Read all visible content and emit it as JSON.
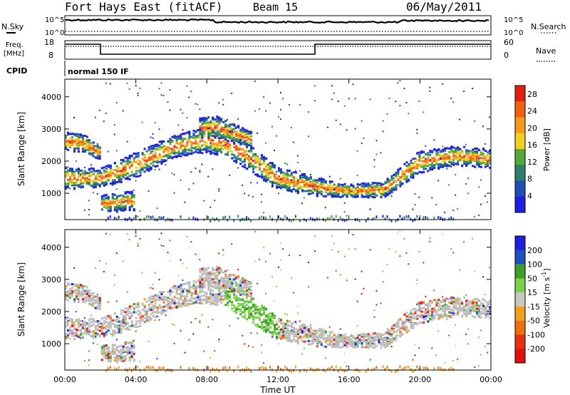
{
  "header": {
    "title": "Fort Hays East (fitACF)",
    "beam": "Beam 15",
    "date": "06/May/2011"
  },
  "status_panels": {
    "nsky_label": "N.Sky",
    "nsearch_label": "N.Search",
    "noise_ticks_left": [
      "10^5",
      "10^0"
    ],
    "noise_ticks_right": [
      "10^5",
      "10^0"
    ],
    "freq_label": "Freq.",
    "freq_unit": "[MHz]",
    "freq_ticks": [
      "18",
      "8"
    ],
    "nave_label": "Nave",
    "nave_ticks": [
      "60",
      "0"
    ],
    "cpid_label": "CPID",
    "cpid_value": "normal 150 IF"
  },
  "colors": {
    "power": [
      "#1f1fe0",
      "#1f4fb0",
      "#2e7d6e",
      "#55a83a",
      "#f0d020",
      "#f59a1a",
      "#f06010",
      "#e02010"
    ],
    "velocity": [
      "#1f1fe0",
      "#2050c0",
      "#3aa02a",
      "#79d24a",
      "#c8c8c0",
      "#f2a020",
      "#f07010",
      "#e83010",
      "#e01010"
    ],
    "ground_scatter": "#bebebe"
  },
  "chart_data": [
    {
      "type": "heatmap",
      "panel": "power",
      "xlabel": "Time UT",
      "ylabel": "Slant Range [km]",
      "x_ticks": [
        "00:00",
        "04:00",
        "08:00",
        "12:00",
        "16:00",
        "20:00",
        "00:00"
      ],
      "xlim_hours": [
        0,
        24
      ],
      "y_ticks": [
        1000,
        2000,
        3000,
        4000
      ],
      "ylim": [
        180,
        4550
      ],
      "colorbar": {
        "label": "Power [dB]",
        "ticks": [
          4,
          8,
          12,
          16,
          20,
          24,
          28
        ],
        "range": [
          0,
          30
        ]
      },
      "echo_bands": [
        {
          "t": [
            0.0,
            2.0,
            4.0,
            6.0,
            8.0,
            9.5,
            12.0,
            14.0,
            16.0,
            18.0,
            20.0,
            22.0,
            24.0
          ],
          "center_km": [
            1500,
            1500,
            1900,
            2450,
            2700,
            2500,
            1500,
            1250,
            1100,
            1150,
            2000,
            2200,
            2100
          ],
          "width_km": [
            350,
            300,
            400,
            350,
            400,
            450,
            350,
            300,
            200,
            250,
            350,
            300,
            300
          ]
        },
        {
          "t": [
            0.0,
            1.0,
            1.6,
            2.0
          ],
          "center_km": [
            2650,
            2600,
            2400,
            2300
          ],
          "width_km": [
            300,
            300,
            250,
            200
          ]
        },
        {
          "t": [
            2.0,
            3.0,
            4.0
          ],
          "center_km": [
            700,
            750,
            800
          ],
          "width_km": [
            250,
            300,
            300
          ]
        },
        {
          "t": [
            7.5,
            8.5,
            9.5,
            10.5
          ],
          "center_km": [
            3050,
            3100,
            2900,
            2700
          ],
          "width_km": [
            300,
            350,
            300,
            250
          ]
        }
      ]
    },
    {
      "type": "heatmap",
      "panel": "velocity",
      "xlabel": "Time UT",
      "ylabel": "Slant Range [km]",
      "x_ticks": [
        "00:00",
        "04:00",
        "08:00",
        "12:00",
        "16:00",
        "20:00",
        "00:00"
      ],
      "xlim_hours": [
        0,
        24
      ],
      "y_ticks": [
        1000,
        2000,
        3000,
        4000
      ],
      "ylim": [
        180,
        4550
      ],
      "colorbar": {
        "label": "Velocity [m s^-1]",
        "ticks": [
          200,
          100,
          50,
          15,
          -15,
          -50,
          -100,
          -200
        ]
      }
    }
  ]
}
